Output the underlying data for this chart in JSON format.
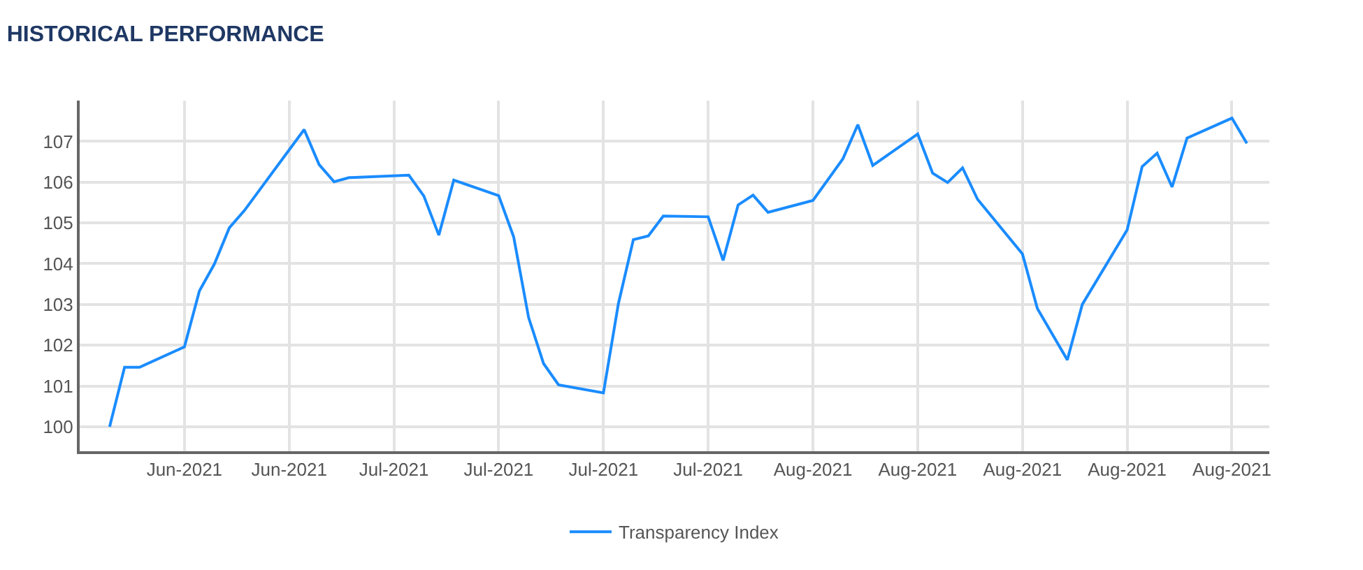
{
  "chart_data": {
    "type": "line",
    "title": "HISTORICAL PERFORMANCE",
    "x": [
      "2021-06-16",
      "2021-06-17",
      "2021-06-18",
      "2021-06-21",
      "2021-06-22",
      "2021-06-23",
      "2021-06-24",
      "2021-06-25",
      "2021-06-29",
      "2021-06-30",
      "2021-07-01",
      "2021-07-02",
      "2021-07-06",
      "2021-07-07",
      "2021-07-08",
      "2021-07-09",
      "2021-07-12",
      "2021-07-13",
      "2021-07-14",
      "2021-07-15",
      "2021-07-16",
      "2021-07-19",
      "2021-07-20",
      "2021-07-21",
      "2021-07-22",
      "2021-07-23",
      "2021-07-26",
      "2021-07-27",
      "2021-07-28",
      "2021-07-29",
      "2021-07-30",
      "2021-08-02",
      "2021-08-04",
      "2021-08-05",
      "2021-08-06",
      "2021-08-09",
      "2021-08-10",
      "2021-08-11",
      "2021-08-12",
      "2021-08-13",
      "2021-08-16",
      "2021-08-17",
      "2021-08-19",
      "2021-08-20",
      "2021-08-23",
      "2021-08-24",
      "2021-08-25",
      "2021-08-26",
      "2021-08-27",
      "2021-08-30",
      "2021-08-31"
    ],
    "series": [
      {
        "name": "Transparency Index",
        "color": "#1a8cff",
        "values": [
          100.0,
          101.46,
          101.46,
          101.96,
          103.33,
          103.99,
          104.88,
          105.3,
          107.29,
          106.43,
          106.01,
          106.11,
          106.17,
          105.66,
          104.7,
          106.05,
          105.67,
          104.66,
          102.68,
          101.55,
          101.03,
          100.83,
          103.02,
          104.59,
          104.68,
          105.17,
          105.15,
          104.08,
          105.44,
          105.68,
          105.26,
          105.55,
          106.57,
          107.41,
          106.41,
          107.18,
          106.22,
          105.99,
          106.35,
          105.58,
          104.24,
          102.9,
          101.64,
          103.0,
          104.83,
          106.38,
          106.71,
          105.88,
          107.08,
          107.57,
          106.95
        ]
      }
    ],
    "xlim": [
      "2021-06-14",
      "2021-09-01T12:00"
    ],
    "xticks": [
      {
        "value": "2021-06-21",
        "label": "Jun-2021"
      },
      {
        "value": "2021-06-28",
        "label": "Jun-2021"
      },
      {
        "value": "2021-07-05",
        "label": "Jul-2021"
      },
      {
        "value": "2021-07-12",
        "label": "Jul-2021"
      },
      {
        "value": "2021-07-19",
        "label": "Jul-2021"
      },
      {
        "value": "2021-07-26",
        "label": "Jul-2021"
      },
      {
        "value": "2021-08-02",
        "label": "Aug-2021"
      },
      {
        "value": "2021-08-09",
        "label": "Aug-2021"
      },
      {
        "value": "2021-08-16",
        "label": "Aug-2021"
      },
      {
        "value": "2021-08-23",
        "label": "Aug-2021"
      },
      {
        "value": "2021-08-30",
        "label": "Aug-2021"
      }
    ],
    "ylim": [
      99.4,
      108
    ],
    "yticks": [
      100,
      101,
      102,
      103,
      104,
      105,
      106,
      107
    ],
    "grid": true,
    "legend": "bottom",
    "marker": "none",
    "line_style": "solid"
  }
}
